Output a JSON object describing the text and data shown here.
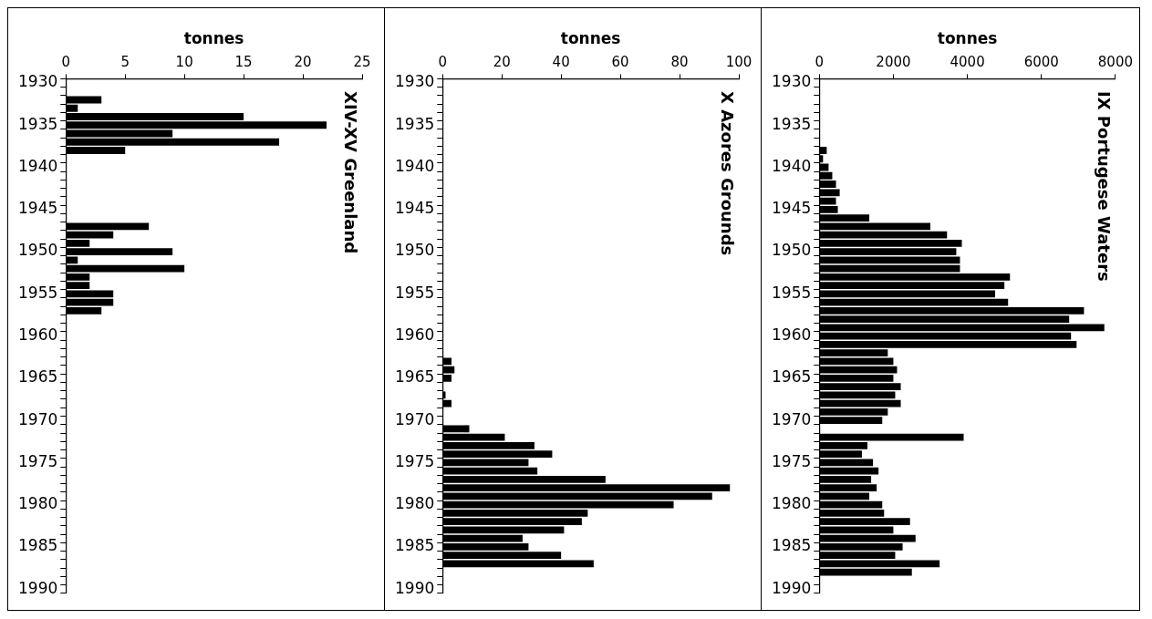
{
  "chart_data": [
    {
      "type": "bar",
      "orientation": "horizontal",
      "title": "XIV-XV Greenland",
      "xlabel": "tonnes",
      "color": "#000000",
      "xlim": [
        0,
        25
      ],
      "xticks": [
        0,
        5,
        10,
        15,
        20,
        25
      ],
      "categories": [
        "1930",
        null,
        null,
        null,
        null,
        "1935",
        null,
        null,
        null,
        null,
        "1940",
        null,
        null,
        null,
        null,
        "1945",
        null,
        null,
        null,
        null,
        "1950",
        null,
        null,
        null,
        null,
        "1955",
        null,
        null,
        null,
        null,
        "1960",
        null,
        null,
        null,
        null,
        "1965",
        null,
        null,
        null,
        null,
        "1970",
        null,
        null,
        null,
        null,
        "1975",
        null,
        null,
        null,
        null,
        "1980",
        null,
        null,
        null,
        null,
        "1985",
        null,
        null,
        null,
        null,
        "1990"
      ],
      "values": [
        null,
        null,
        3,
        1,
        15,
        22,
        9,
        18,
        5,
        null,
        null,
        null,
        null,
        null,
        null,
        null,
        null,
        7,
        4,
        2,
        9,
        1,
        10,
        2,
        2,
        4,
        4,
        3,
        null,
        null,
        null,
        null,
        null,
        null,
        null,
        null,
        null,
        null,
        null,
        null,
        null,
        null,
        null,
        null,
        null,
        null,
        null,
        null,
        null,
        null,
        null,
        null,
        null,
        null,
        null,
        null,
        null,
        null,
        null,
        null,
        null
      ]
    },
    {
      "type": "bar",
      "orientation": "horizontal",
      "title": "X Azores Grounds",
      "xlabel": "tonnes",
      "color": "#000000",
      "xlim": [
        0,
        100
      ],
      "xticks": [
        0,
        20,
        40,
        60,
        80,
        100
      ],
      "categories": [
        "1930",
        null,
        null,
        null,
        null,
        "1935",
        null,
        null,
        null,
        null,
        "1940",
        null,
        null,
        null,
        null,
        "1945",
        null,
        null,
        null,
        null,
        "1950",
        null,
        null,
        null,
        null,
        "1955",
        null,
        null,
        null,
        null,
        "1960",
        null,
        null,
        null,
        null,
        "1965",
        null,
        null,
        null,
        null,
        "1970",
        null,
        null,
        null,
        null,
        "1975",
        null,
        null,
        null,
        null,
        "1980",
        null,
        null,
        null,
        null,
        "1985",
        null,
        null,
        null,
        null,
        "1990"
      ],
      "values": [
        null,
        null,
        null,
        null,
        null,
        null,
        null,
        null,
        null,
        null,
        null,
        null,
        null,
        null,
        null,
        null,
        null,
        null,
        null,
        null,
        null,
        null,
        null,
        null,
        null,
        null,
        null,
        null,
        null,
        null,
        null,
        null,
        null,
        3,
        4,
        3,
        null,
        1,
        3,
        null,
        null,
        9,
        21,
        31,
        37,
        29,
        32,
        55,
        97,
        91,
        78,
        49,
        47,
        41,
        27,
        29,
        40,
        51,
        null,
        null,
        null
      ]
    },
    {
      "type": "bar",
      "orientation": "horizontal",
      "title": "IX Portugese Waters",
      "xlabel": "tonnes",
      "color": "#000000",
      "xlim": [
        0,
        8000
      ],
      "xticks": [
        0,
        2000,
        4000,
        6000,
        8000
      ],
      "categories": [
        "1930",
        null,
        null,
        null,
        null,
        "1935",
        null,
        null,
        null,
        null,
        "1940",
        null,
        null,
        null,
        null,
        "1945",
        null,
        null,
        null,
        null,
        "1950",
        null,
        null,
        null,
        null,
        "1955",
        null,
        null,
        null,
        null,
        "1960",
        null,
        null,
        null,
        null,
        "1965",
        null,
        null,
        null,
        null,
        "1970",
        null,
        null,
        null,
        null,
        "1975",
        null,
        null,
        null,
        null,
        "1980",
        null,
        null,
        null,
        null,
        "1985",
        null,
        null,
        null,
        null,
        "1990"
      ],
      "values": [
        null,
        null,
        null,
        null,
        null,
        null,
        null,
        null,
        200,
        100,
        250,
        350,
        450,
        550,
        450,
        500,
        1350,
        3000,
        3450,
        3850,
        3700,
        3800,
        3800,
        5150,
        5000,
        4750,
        5100,
        7150,
        6750,
        7700,
        6800,
        6950,
        1850,
        2000,
        2100,
        2000,
        2200,
        2050,
        2200,
        1850,
        1700,
        null,
        3900,
        1300,
        1150,
        1450,
        1600,
        1400,
        1550,
        1350,
        1700,
        1750,
        2450,
        2000,
        2600,
        2250,
        2050,
        3250,
        2500,
        null,
        null
      ]
    }
  ]
}
